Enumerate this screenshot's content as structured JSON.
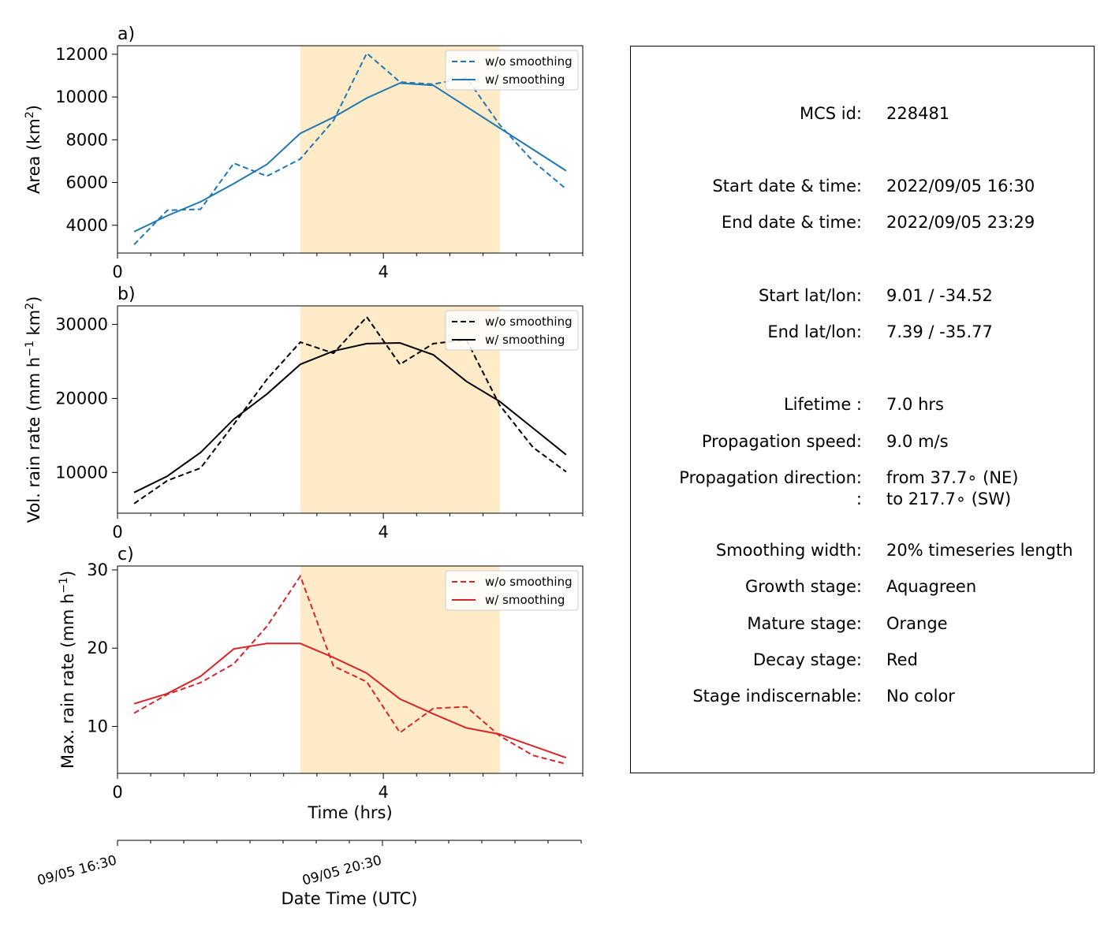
{
  "chart_data": [
    {
      "type": "line",
      "panel_label": "a)",
      "ylabel": "Area",
      "ylabel_unit": "km",
      "ylabel_sup": "2",
      "xlim": [
        0,
        7
      ],
      "ylim": [
        2700,
        12400
      ],
      "xticks": [
        0,
        4
      ],
      "yticks": [
        4000,
        6000,
        8000,
        10000,
        12000
      ],
      "color": "#1f77b4",
      "shaded_region": [
        2.75,
        5.75
      ],
      "x": [
        0.25,
        0.75,
        1.25,
        1.75,
        2.25,
        2.75,
        3.25,
        3.75,
        4.25,
        4.75,
        5.25,
        5.75,
        6.25,
        6.75
      ],
      "series": [
        {
          "name": "w/o smoothing",
          "dash": true,
          "values": [
            3100,
            4700,
            4750,
            6900,
            6300,
            7100,
            8900,
            12050,
            10700,
            10600,
            10900,
            8700,
            7000,
            5700
          ]
        },
        {
          "name": "w/ smoothing",
          "dash": false,
          "values": [
            3700,
            4450,
            5100,
            5950,
            6850,
            8300,
            9050,
            9950,
            10650,
            10550,
            9550,
            8550,
            7550,
            6550
          ]
        }
      ],
      "legend_position": "top-right"
    },
    {
      "type": "line",
      "panel_label": "b)",
      "ylabel": "Vol. rain rate (mm h",
      "ylabel_unit": "",
      "ylabel_sup": "",
      "xlim": [
        0,
        7
      ],
      "ylim": [
        4500,
        32500
      ],
      "xticks": [
        0,
        4
      ],
      "yticks": [
        10000,
        20000,
        30000
      ],
      "color": "#000000",
      "shaded_region": [
        2.75,
        5.75
      ],
      "x": [
        0.25,
        0.75,
        1.25,
        1.75,
        2.25,
        2.75,
        3.25,
        3.75,
        4.25,
        4.75,
        5.25,
        5.75,
        6.25,
        6.75
      ],
      "series": [
        {
          "name": "w/o smoothing",
          "dash": true,
          "values": [
            5800,
            8900,
            10600,
            16500,
            22600,
            27600,
            26100,
            31000,
            24600,
            27400,
            27900,
            19100,
            13400,
            10100
          ]
        },
        {
          "name": "w/ smoothing",
          "dash": false,
          "values": [
            7300,
            9500,
            12700,
            17200,
            20600,
            24600,
            26400,
            27400,
            27500,
            25900,
            22300,
            19600,
            16000,
            12400
          ]
        }
      ],
      "legend_position": "top-right"
    },
    {
      "type": "line",
      "panel_label": "c)",
      "ylabel": "Max. rain rate",
      "ylabel_unit": "(mm h",
      "ylabel_sup": "-1",
      "xlim": [
        0,
        7
      ],
      "ylim": [
        4,
        30.5
      ],
      "xticks": [
        0,
        4
      ],
      "yticks": [
        10,
        20,
        30
      ],
      "xlabel": "Time (hrs)",
      "color": "#d62728",
      "shaded_region": [
        2.75,
        5.75
      ],
      "x": [
        0.25,
        0.75,
        1.25,
        1.75,
        2.25,
        2.75,
        3.25,
        3.75,
        4.25,
        4.75,
        5.25,
        5.75,
        6.25,
        6.75
      ],
      "series": [
        {
          "name": "w/o smoothing",
          "dash": true,
          "values": [
            11.7,
            14.1,
            15.6,
            18.0,
            22.8,
            29.2,
            17.7,
            15.7,
            9.2,
            12.3,
            12.5,
            8.8,
            6.3,
            5.2
          ]
        },
        {
          "name": "w/ smoothing",
          "dash": false,
          "values": [
            12.9,
            14.2,
            16.4,
            19.9,
            20.6,
            20.6,
            18.8,
            16.8,
            13.5,
            11.6,
            9.8,
            9.0,
            7.5,
            6.0
          ]
        }
      ],
      "legend_position": "top-right"
    }
  ],
  "date_axis": {
    "xlabel": "Date Time (UTC)",
    "tick_labels": [
      {
        "hrs": 0,
        "label": "09/05 16:30"
      },
      {
        "hrs": 4,
        "label": "09/05 20:30"
      }
    ]
  },
  "info_panel": {
    "rows": [
      {
        "label": "MCS id:",
        "value": "228481"
      },
      {
        "label": "Start date & time:",
        "value": "2022/09/05 16:30"
      },
      {
        "label": "End date & time:",
        "value": "2022/09/05 23:29"
      },
      {
        "label": "Start lat/lon:",
        "value": "9.01 / -34.52"
      },
      {
        "label": "End lat/lon:",
        "value": "7.39 / -35.77"
      },
      {
        "label": "Lifetime :",
        "value": "7.0 hrs"
      },
      {
        "label": "Propagation speed:",
        "value": "9.0 m/s"
      },
      {
        "label": "Propagation direction:",
        "value": "from  37.7∘ (NE)"
      },
      {
        "label": ":",
        "value": "to   217.7∘ (SW)"
      },
      {
        "label": "Smoothing width:",
        "value": "20% timeseries length"
      },
      {
        "label": "Growth stage:",
        "value": "Aquagreen"
      },
      {
        "label": "Mature stage:",
        "value": "Orange"
      },
      {
        "label": "Decay stage:",
        "value": "Red"
      },
      {
        "label": "Stage indiscernable:",
        "value": "No color"
      }
    ]
  },
  "colors": {
    "mature_shading": "#ffebc8",
    "area_line": "#1f77b4",
    "volrain_line": "#000000",
    "maxrain_line": "#d62728"
  }
}
